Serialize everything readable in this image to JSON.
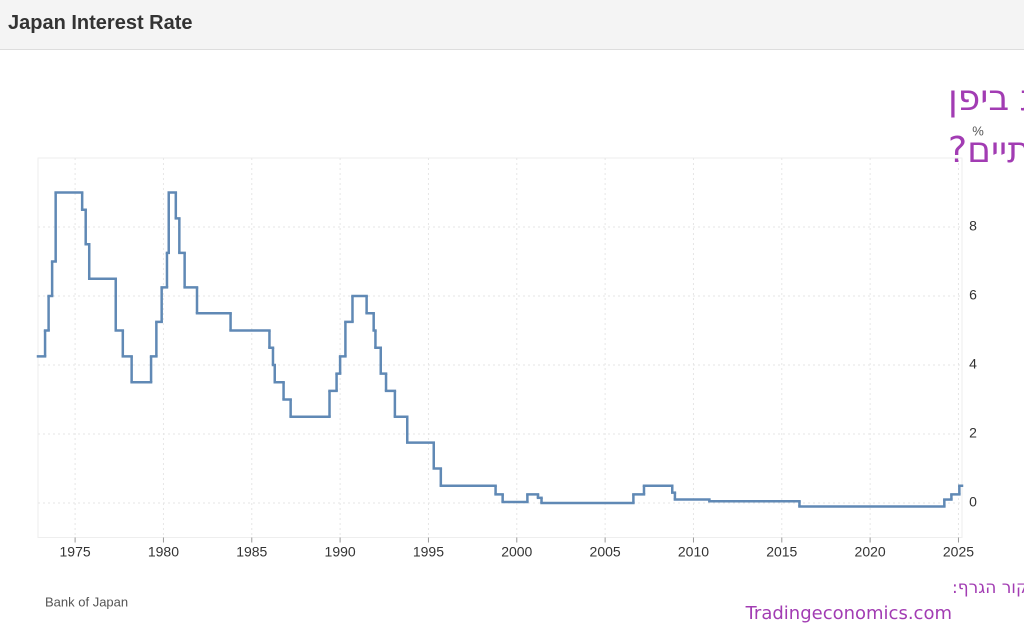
{
  "header": "Japan Interest Rate",
  "chart_data": {
    "type": "step",
    "title_lines": [
      "האם שלושה עשורים של ריבית אפסית ביפן",
      "עומדים להסתיים?"
    ],
    "y_unit": "%",
    "source": "Bank of Japan",
    "credit_lines": [
      "מקור הגרף:",
      "Tradingeconomics.com"
    ],
    "x": [
      1972.9,
      1973.3,
      1973.5,
      1973.7,
      1973.9,
      1975.4,
      1975.6,
      1975.8,
      1977.3,
      1977.7,
      1978.2,
      1979.3,
      1979.6,
      1979.9,
      1980.2,
      1980.3,
      1980.7,
      1980.9,
      1981.2,
      1981.9,
      1983.8,
      1986.0,
      1986.2,
      1986.3,
      1986.8,
      1987.2,
      1989.4,
      1989.8,
      1990.0,
      1990.3,
      1990.7,
      1991.5,
      1991.9,
      1992.0,
      1992.3,
      1992.6,
      1993.1,
      1993.8,
      1995.3,
      1995.7,
      1998.8,
      1999.2,
      2000.6,
      2001.2,
      2001.4,
      2006.6,
      2007.2,
      2008.8,
      2008.95,
      2010.9,
      2016.0,
      2024.2,
      2024.6,
      2025.05
    ],
    "values": [
      4.25,
      5,
      6,
      7,
      9,
      8.5,
      7.5,
      6.5,
      5,
      4.25,
      3.5,
      4.25,
      5.25,
      6.25,
      7.25,
      9,
      8.25,
      7.25,
      6.25,
      5.5,
      5,
      4.5,
      4,
      3.5,
      3,
      2.5,
      3.25,
      3.75,
      4.25,
      5.25,
      6,
      5.5,
      5,
      4.5,
      3.75,
      3.25,
      2.5,
      1.75,
      1,
      0.5,
      0.25,
      0.03,
      0.25,
      0.15,
      0,
      0.25,
      0.5,
      0.3,
      0.1,
      0.05,
      -0.1,
      0.1,
      0.25,
      0.5
    ],
    "color": "#6089b5",
    "xlim": [
      1972.9,
      2025.2
    ],
    "ylim": [
      -1,
      10
    ],
    "xticks": [
      1975,
      1980,
      1985,
      1990,
      1995,
      2000,
      2005,
      2010,
      2015,
      2020,
      2025
    ],
    "yticks": [
      0,
      2,
      4,
      6,
      8
    ],
    "grid": true
  }
}
